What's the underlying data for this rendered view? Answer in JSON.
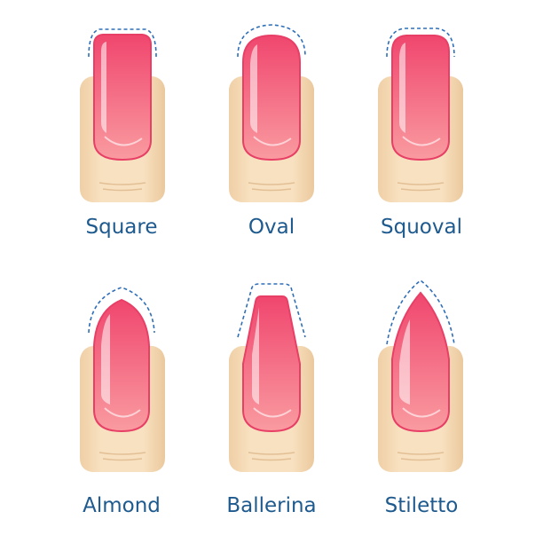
{
  "colors": {
    "background": "#ffffff",
    "skin": "#f6dcb8",
    "skin_shadow": "#e9c79e",
    "nail_top": "#f0466e",
    "nail_bottom": "#f99ba0",
    "nail_rim": "#e83f66",
    "outline_dashed": "#2f6fb8",
    "label_text": "#1e5a8e"
  },
  "nails": [
    {
      "label": "Square",
      "shape_icon": "square-nail-icon"
    },
    {
      "label": "Oval",
      "shape_icon": "oval-nail-icon"
    },
    {
      "label": "Squoval",
      "shape_icon": "squoval-nail-icon"
    },
    {
      "label": "Almond",
      "shape_icon": "almond-nail-icon"
    },
    {
      "label": "Ballerina",
      "shape_icon": "ballerina-nail-icon"
    },
    {
      "label": "Stiletto",
      "shape_icon": "stiletto-nail-icon"
    }
  ]
}
